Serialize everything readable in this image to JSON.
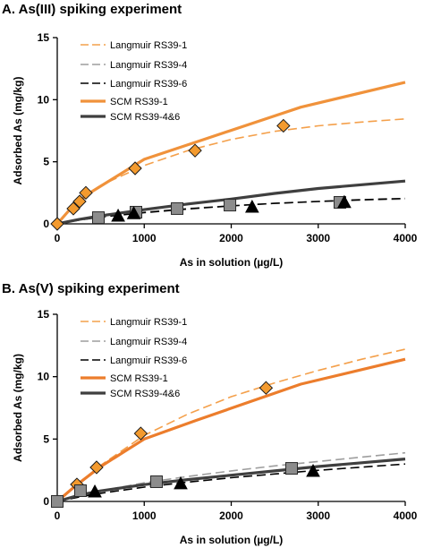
{
  "chart_data": [
    {
      "type": "scatter",
      "title": "A. As(III) spiking experiment",
      "xlabel": "As in solution (µg/L)",
      "ylabel": "Adsorbed As (mg/kg)",
      "xlim": [
        0,
        4000
      ],
      "ylim": [
        0,
        15
      ],
      "xticks": [
        0,
        1000,
        2000,
        3000,
        4000
      ],
      "yticks": [
        0,
        5,
        10,
        15
      ],
      "grid": false,
      "legend": "top-left",
      "lines": [
        {
          "name": "Langmuir RS39-1",
          "style": "dashed",
          "color": "#f4a04b",
          "x": [
            0,
            250,
            500,
            1000,
            1500,
            2000,
            2500,
            3000,
            3500,
            4000
          ],
          "y": [
            0,
            2.0,
            3.1,
            4.7,
            5.9,
            6.8,
            7.45,
            7.9,
            8.2,
            8.45
          ]
        },
        {
          "name": "Langmuir RS39-4",
          "style": "dashed",
          "color": "#9e9e9e",
          "x": [
            0,
            250,
            500,
            1000,
            1500,
            2000,
            2500,
            3000,
            3500,
            4000
          ],
          "y": [
            0,
            0.35,
            0.6,
            0.95,
            1.25,
            1.45,
            1.65,
            1.8,
            1.9,
            2.0
          ]
        },
        {
          "name": "Langmuir RS39-6",
          "style": "dashed",
          "color": "#000000",
          "x": [
            0,
            250,
            500,
            1000,
            1500,
            2000,
            2500,
            3000,
            3500,
            4000
          ],
          "y": [
            0,
            0.3,
            0.55,
            0.9,
            1.2,
            1.45,
            1.65,
            1.8,
            1.95,
            2.05
          ]
        },
        {
          "name": "SCM RS39-1",
          "style": "solid",
          "color": "#f0923b",
          "x": [
            0,
            200,
            400,
            1000,
            1600,
            2800,
            4000
          ],
          "y": [
            0,
            1.6,
            2.6,
            5.2,
            6.6,
            9.4,
            11.4
          ]
        },
        {
          "name": "SCM RS39-4&6",
          "style": "solid",
          "color": "#3f3f3f",
          "x": [
            0,
            250,
            500,
            1000,
            1500,
            2000,
            2500,
            3000,
            3500,
            4000
          ],
          "y": [
            0,
            0.35,
            0.65,
            1.15,
            1.6,
            2.0,
            2.45,
            2.85,
            3.15,
            3.45
          ]
        }
      ],
      "points": [
        {
          "marker": "diamond",
          "fill": "#f39a2e",
          "x": [
            0,
            185,
            257,
            329,
            895,
            1584,
            2600
          ],
          "y": [
            0,
            1.23,
            1.8,
            2.5,
            4.47,
            5.9,
            7.9
          ]
        },
        {
          "marker": "square",
          "fill": "#8c8c8c",
          "x": [
            473,
            905,
            1378,
            1985,
            3249
          ],
          "y": [
            0.5,
            0.94,
            1.23,
            1.51,
            1.73
          ]
        },
        {
          "marker": "triangle",
          "fill": "#000000",
          "x": [
            700,
            880,
            2240,
            3300
          ],
          "y": [
            0.65,
            0.85,
            1.37,
            1.75
          ]
        }
      ]
    },
    {
      "type": "scatter",
      "title": "B. As(V) spiking experiment",
      "xlabel": "As in solution (µg/L)",
      "ylabel": "Adsorbed As (mg/kg)",
      "xlim": [
        0,
        4000
      ],
      "ylim": [
        0,
        15
      ],
      "xticks": [
        0,
        1000,
        2000,
        3000,
        4000
      ],
      "yticks": [
        0,
        5,
        10,
        15
      ],
      "grid": false,
      "legend": "top-left",
      "lines": [
        {
          "name": "Langmuir RS39-1",
          "style": "dashed",
          "color": "#f4a04b",
          "x": [
            0,
            250,
            500,
            1000,
            1500,
            2000,
            2500,
            3000,
            3500,
            4000
          ],
          "y": [
            0,
            1.5,
            2.9,
            5.3,
            7.0,
            8.4,
            9.5,
            10.5,
            11.4,
            12.2
          ]
        },
        {
          "name": "Langmuir RS39-4",
          "style": "dashed",
          "color": "#9e9e9e",
          "x": [
            0,
            250,
            500,
            1000,
            1500,
            2000,
            2500,
            3000,
            3500,
            4000
          ],
          "y": [
            0,
            0.45,
            0.85,
            1.5,
            2.0,
            2.45,
            2.85,
            3.2,
            3.55,
            3.9
          ]
        },
        {
          "name": "Langmuir RS39-6",
          "style": "dashed",
          "color": "#000000",
          "x": [
            0,
            250,
            500,
            1000,
            1500,
            2000,
            2500,
            3000,
            3500,
            4000
          ],
          "y": [
            0,
            0.35,
            0.65,
            1.15,
            1.55,
            1.9,
            2.2,
            2.5,
            2.75,
            3.0
          ]
        },
        {
          "name": "SCM RS39-1",
          "style": "solid",
          "color": "#ec7d2c",
          "x": [
            0,
            200,
            500,
            1000,
            1600,
            2800,
            4000
          ],
          "y": [
            0,
            1.2,
            2.8,
            5.0,
            6.5,
            9.4,
            11.4
          ]
        },
        {
          "name": "SCM RS39-4&6",
          "style": "solid",
          "color": "#3f3f3f",
          "x": [
            0,
            250,
            500,
            1000,
            1500,
            2000,
            2500,
            3000,
            3500,
            4000
          ],
          "y": [
            0,
            0.5,
            0.85,
            1.35,
            1.75,
            2.1,
            2.45,
            2.8,
            3.1,
            3.4
          ]
        }
      ],
      "points": [
        {
          "marker": "diamond",
          "fill": "#f39a2e",
          "x": [
            226,
            452,
            960,
            2400
          ],
          "y": [
            1.36,
            2.73,
            5.45,
            9.1
          ]
        },
        {
          "marker": "square",
          "fill": "#8c8c8c",
          "x": [
            0,
            267,
            1141,
            2694
          ],
          "y": [
            0,
            0.86,
            1.58,
            2.65
          ]
        },
        {
          "marker": "triangle",
          "fill": "#000000",
          "x": [
            432,
            1419,
            2941
          ],
          "y": [
            0.79,
            1.44,
            2.44
          ]
        }
      ]
    }
  ]
}
